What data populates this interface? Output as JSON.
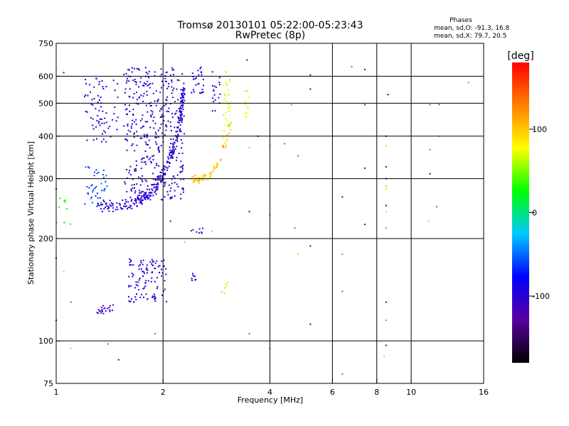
{
  "chart_data": {
    "type": "scatter",
    "title": "Tromsø 20130101 05:22:00-05:23:43",
    "subtitle": "RwPretec (8p)",
    "xlabel": "Frequency [MHz]",
    "ylabel": "Stationary phase Virtual Height [km]",
    "x_scale": "log",
    "y_scale": "log",
    "xlim": [
      1,
      16
    ],
    "ylim": [
      75,
      750
    ],
    "x_ticks": [
      1,
      2,
      4,
      6,
      8,
      10,
      16
    ],
    "x_tick_labels": [
      "1",
      "2",
      "4",
      "6",
      "8",
      "10",
      "16"
    ],
    "y_ticks": [
      75,
      100,
      200,
      300,
      400,
      500,
      600,
      750
    ],
    "y_tick_labels": [
      "75",
      "100",
      "200",
      "300",
      "400",
      "500",
      "600",
      "750"
    ],
    "grid": true,
    "stats": {
      "heading": "Phases",
      "line_o": "mean, sd,O: -91.3, 16.8",
      "line_x": "mean, sd,X:  79.7, 20.5"
    },
    "colorbar": {
      "label": "[deg]",
      "range": [
        -180,
        180
      ],
      "ticks": [
        100,
        0,
        -100
      ],
      "tick_labels": [
        "100",
        "0",
        "-100"
      ],
      "colors": [
        "#000000",
        "#5a00a0",
        "#0000ff",
        "#00c8ff",
        "#00ff00",
        "#ffff00",
        "#ff8000",
        "#ff0000"
      ]
    },
    "traces": [
      {
        "kind": "curve",
        "f": [
          1.3,
          1.45,
          1.6,
          1.75,
          1.9,
          2.0,
          2.1,
          2.2,
          2.25,
          2.3
        ],
        "h": [
          250,
          248,
          252,
          262,
          285,
          310,
          350,
          410,
          480,
          560
        ],
        "phase": -100,
        "n": 260,
        "spread": 0.06
      },
      {
        "kind": "block",
        "f": [
          1.55,
          2.3
        ],
        "h": [
          260,
          640
        ],
        "phase": -105,
        "n": 420
      },
      {
        "kind": "block",
        "f": [
          1.2,
          1.5
        ],
        "h": [
          380,
          600
        ],
        "phase": -95,
        "n": 70
      },
      {
        "kind": "block",
        "f": [
          1.2,
          1.4
        ],
        "h": [
          250,
          330
        ],
        "phase": -60,
        "n": 40
      },
      {
        "kind": "curve",
        "f": [
          2.4,
          2.55,
          2.7,
          2.85,
          3.0,
          3.1
        ],
        "h": [
          300,
          298,
          305,
          330,
          380,
          440
        ],
        "phase": 100,
        "n": 70,
        "spread": 0.04
      },
      {
        "kind": "block",
        "f": [
          2.95,
          3.1
        ],
        "h": [
          380,
          620
        ],
        "phase": 70,
        "n": 35
      },
      {
        "kind": "block",
        "f": [
          3.4,
          3.5
        ],
        "h": [
          450,
          560
        ],
        "phase": 85,
        "n": 12
      },
      {
        "kind": "block",
        "f": [
          2.4,
          2.6
        ],
        "h": [
          530,
          640
        ],
        "phase": -90,
        "n": 25
      },
      {
        "kind": "block",
        "f": [
          2.75,
          2.9
        ],
        "h": [
          460,
          620
        ],
        "phase": -95,
        "n": 18
      },
      {
        "kind": "block",
        "f": [
          1.6,
          2.05
        ],
        "h": [
          130,
          175
        ],
        "phase": -100,
        "n": 110
      },
      {
        "kind": "block",
        "f": [
          1.3,
          1.45
        ],
        "h": [
          120,
          128
        ],
        "phase": -110,
        "n": 22
      },
      {
        "kind": "block",
        "f": [
          2.4,
          2.5
        ],
        "h": [
          150,
          158
        ],
        "phase": -95,
        "n": 8
      },
      {
        "kind": "block",
        "f": [
          2.9,
          3.05
        ],
        "h": [
          138,
          150
        ],
        "phase": 55,
        "n": 6
      },
      {
        "kind": "block",
        "f": [
          2.4,
          2.6
        ],
        "h": [
          205,
          215
        ],
        "phase": -110,
        "n": 8
      },
      {
        "kind": "block",
        "f": [
          1.0,
          1.1
        ],
        "h": [
          220,
          280
        ],
        "phase": 20,
        "n": 10
      }
    ],
    "points": [
      {
        "f": 1.05,
        "h": 615,
        "phase": -110
      },
      {
        "f": 5.2,
        "h": 605,
        "phase": -100
      },
      {
        "f": 5.2,
        "h": 550,
        "phase": -120
      },
      {
        "f": 4.6,
        "h": 495,
        "phase": 20
      },
      {
        "f": 7.4,
        "h": 495,
        "phase": -60
      },
      {
        "f": 8.6,
        "h": 530,
        "phase": -110
      },
      {
        "f": 6.8,
        "h": 640,
        "phase": 150
      },
      {
        "f": 7.4,
        "h": 628,
        "phase": -110
      },
      {
        "f": 12,
        "h": 495,
        "phase": 170
      },
      {
        "f": 11.3,
        "h": 495,
        "phase": -40
      },
      {
        "f": 14.5,
        "h": 575,
        "phase": 20
      },
      {
        "f": 8.5,
        "h": 400,
        "phase": -100
      },
      {
        "f": 8.5,
        "h": 375,
        "phase": 100
      },
      {
        "f": 8.5,
        "h": 325,
        "phase": -110
      },
      {
        "f": 8.5,
        "h": 300,
        "phase": -110
      },
      {
        "f": 8.5,
        "h": 285,
        "phase": 110
      },
      {
        "f": 8.5,
        "h": 280,
        "phase": 90
      },
      {
        "f": 8.5,
        "h": 250,
        "phase": -100
      },
      {
        "f": 8.5,
        "h": 240,
        "phase": 60
      },
      {
        "f": 8.5,
        "h": 215,
        "phase": -20
      },
      {
        "f": 8.5,
        "h": 130,
        "phase": -110
      },
      {
        "f": 8.5,
        "h": 115,
        "phase": -20
      },
      {
        "f": 8.5,
        "h": 97,
        "phase": -110
      },
      {
        "f": 8.4,
        "h": 90,
        "phase": 100
      },
      {
        "f": 11.3,
        "h": 310,
        "phase": -110
      },
      {
        "f": 11.3,
        "h": 365,
        "phase": 150
      },
      {
        "f": 11.2,
        "h": 225,
        "phase": 100
      },
      {
        "f": 11.8,
        "h": 248,
        "phase": -40
      },
      {
        "f": 12.0,
        "h": 400,
        "phase": -20
      },
      {
        "f": 7.4,
        "h": 322,
        "phase": -110
      },
      {
        "f": 7.4,
        "h": 220,
        "phase": -110
      },
      {
        "f": 6.4,
        "h": 265,
        "phase": -110
      },
      {
        "f": 6.4,
        "h": 180,
        "phase": -20
      },
      {
        "f": 6.4,
        "h": 140,
        "phase": -40
      },
      {
        "f": 6.4,
        "h": 80,
        "phase": 150
      },
      {
        "f": 5.2,
        "h": 190,
        "phase": -110
      },
      {
        "f": 5.2,
        "h": 112,
        "phase": -110
      },
      {
        "f": 4.8,
        "h": 350,
        "phase": -40
      },
      {
        "f": 4.4,
        "h": 380,
        "phase": -40
      },
      {
        "f": 4.8,
        "h": 180,
        "phase": 100
      },
      {
        "f": 4.7,
        "h": 215,
        "phase": -40
      },
      {
        "f": 4.0,
        "h": 235,
        "phase": 140
      },
      {
        "f": 4.0,
        "h": 375,
        "phase": 110
      },
      {
        "f": 4.0,
        "h": 95,
        "phase": -40
      },
      {
        "f": 3.5,
        "h": 240,
        "phase": -110
      },
      {
        "f": 3.7,
        "h": 400,
        "phase": -110
      },
      {
        "f": 3.5,
        "h": 370,
        "phase": 110
      },
      {
        "f": 3.5,
        "h": 105,
        "phase": 150
      },
      {
        "f": 3.45,
        "h": 670,
        "phase": -110
      },
      {
        "f": 2.95,
        "h": 373,
        "phase": 150
      },
      {
        "f": 2.1,
        "h": 225,
        "phase": -110
      },
      {
        "f": 2.75,
        "h": 210,
        "phase": 100
      },
      {
        "f": 2.3,
        "h": 195,
        "phase": 110
      },
      {
        "f": 1.9,
        "h": 105,
        "phase": 150
      },
      {
        "f": 1.4,
        "h": 98,
        "phase": -40
      },
      {
        "f": 1.5,
        "h": 88,
        "phase": -110
      },
      {
        "f": 1.1,
        "h": 95,
        "phase": 100
      },
      {
        "f": 1.0,
        "h": 115,
        "phase": -110
      },
      {
        "f": 1.0,
        "h": 175,
        "phase": -110
      },
      {
        "f": 1.0,
        "h": 280,
        "phase": -110
      },
      {
        "f": 1.05,
        "h": 160,
        "phase": 100
      },
      {
        "f": 1.1,
        "h": 130,
        "phase": -40
      }
    ]
  }
}
